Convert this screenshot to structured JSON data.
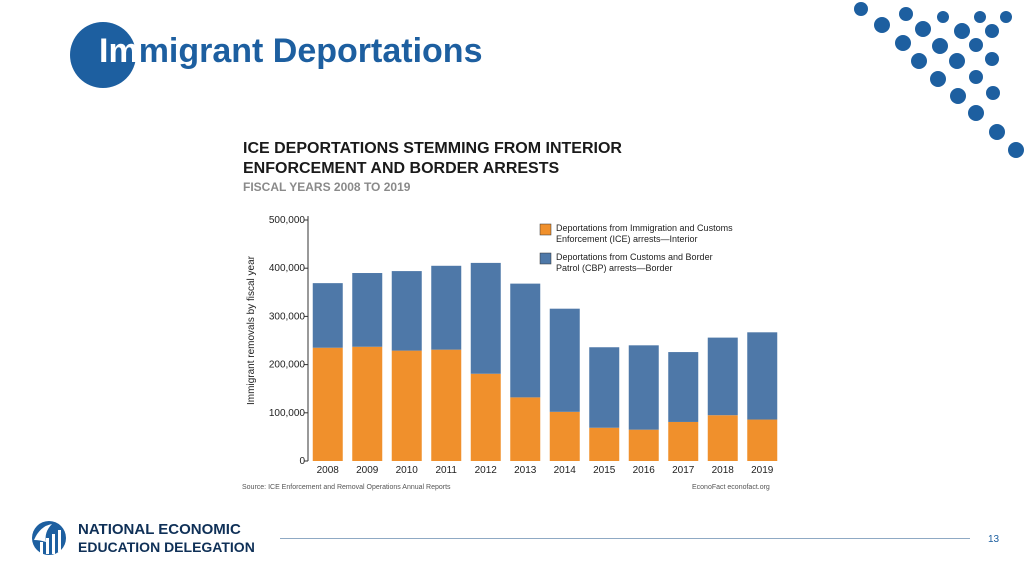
{
  "slide": {
    "title_lead": "Im",
    "title_rest": "migrant Deportations",
    "page_number": "13"
  },
  "footer": {
    "org_line1": "NATIONAL ECONOMIC",
    "org_line2": "EDUCATION DELEGATION"
  },
  "colors": {
    "brand_blue": "#1d5fa0",
    "interior": "#f0902c",
    "border": "#4e78a8"
  },
  "chart_data": {
    "type": "bar",
    "stacked": true,
    "title_line1": "ICE DEPORTATIONS STEMMING FROM INTERIOR",
    "title_line2": "ENFORCEMENT AND BORDER ARRESTS",
    "subtitle": "FISCAL YEARS 2008 TO 2019",
    "ylabel": "Immigrant removals by fiscal year",
    "ylim": [
      0,
      500000
    ],
    "yticks": [
      "0",
      "100,000",
      "200,000",
      "300,000",
      "400,000",
      "500,000"
    ],
    "categories": [
      "2008",
      "2009",
      "2010",
      "2011",
      "2012",
      "2013",
      "2014",
      "2015",
      "2016",
      "2017",
      "2018",
      "2019"
    ],
    "series": [
      {
        "name_line1": "Deportations from Immigration and Customs",
        "name_line2": "Enforcement (ICE) arrests—Interior",
        "values": [
          235000,
          237000,
          229000,
          231000,
          181000,
          132000,
          102000,
          69000,
          65000,
          81000,
          95000,
          86000
        ]
      },
      {
        "name_line1": "Deportations from Customs and Border",
        "name_line2": "Patrol (CBP) arrests—Border",
        "values": [
          134000,
          153000,
          165000,
          174000,
          230000,
          236000,
          214000,
          167000,
          175000,
          145000,
          161000,
          181000
        ]
      }
    ],
    "source": "Source: ICE Enforcement and Removal Operations Annual Reports",
    "credit": "EconoFact  econofact.org"
  }
}
